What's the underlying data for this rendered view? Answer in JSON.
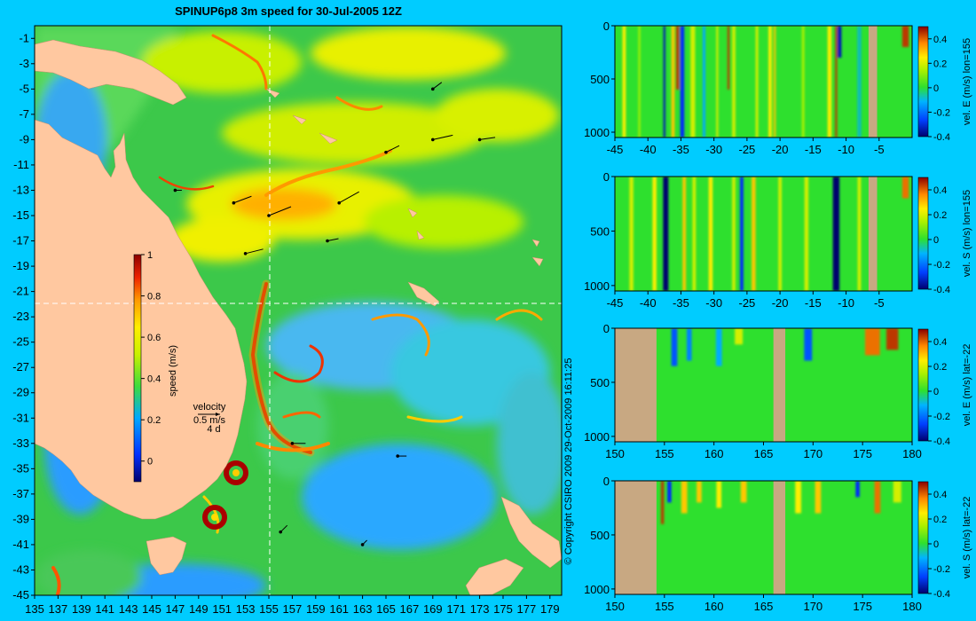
{
  "title": "SPINUP6p8 3m speed for 30-Jul-2005 12Z",
  "copyright": "© Copyright CSIRO 2009   29-Oct-2009 16:11:25",
  "velocity_key": {
    "label": "velocity",
    "speed": "0.5 m/s",
    "days": "4 d"
  },
  "colors": {
    "background": "#00ccff",
    "land": "#ffc8a0",
    "section_land": "#c8a882",
    "guide_line": "#ffffff"
  },
  "chart_data": [
    {
      "type": "heatmap",
      "title": "SPINUP6p8 3m speed for 30-Jul-2005 12Z",
      "xlabel": "",
      "ylabel": "",
      "xlim": [
        135,
        180
      ],
      "ylim": [
        -45,
        0
      ],
      "x_ticks": [
        "135",
        "137",
        "139",
        "141",
        "143",
        "145",
        "147",
        "149",
        "151",
        "153",
        "155",
        "157",
        "159",
        "161",
        "163",
        "165",
        "167",
        "169",
        "171",
        "173",
        "175",
        "177",
        "179"
      ],
      "y_ticks": [
        "-1",
        "-3",
        "-5",
        "-7",
        "-9",
        "-11",
        "-13",
        "-15",
        "-17",
        "-19",
        "-21",
        "-23",
        "-25",
        "-27",
        "-29",
        "-31",
        "-33",
        "-35",
        "-37",
        "-39",
        "-41",
        "-43",
        "-45"
      ],
      "colorbar": {
        "label": "speed (m/s)",
        "range": [
          -0.1,
          1
        ],
        "ticks": [
          "1",
          "0.8",
          "0.6",
          "0.4",
          "0.2",
          "0"
        ]
      },
      "section_guides": {
        "lon": 155,
        "lat": -22
      },
      "eddies": [
        {
          "lon": 151.8,
          "lat": -35.5
        },
        {
          "lon": 150.0,
          "lat": -38.8
        }
      ],
      "velocity_vectors": [
        {
          "lon": 152,
          "lat": -14,
          "u": 0.8,
          "v": 0.3
        },
        {
          "lon": 155,
          "lat": -15,
          "u": 1.0,
          "v": 0.4
        },
        {
          "lon": 161,
          "lat": -14,
          "u": 0.9,
          "v": 0.5
        },
        {
          "lon": 165,
          "lat": -10,
          "u": 0.6,
          "v": 0.3
        },
        {
          "lon": 169,
          "lat": -9,
          "u": 0.9,
          "v": 0.2
        },
        {
          "lon": 173,
          "lat": -9,
          "u": 0.7,
          "v": 0.1
        },
        {
          "lon": 153,
          "lat": -18,
          "u": 0.8,
          "v": 0.2
        },
        {
          "lon": 160,
          "lat": -17,
          "u": 0.5,
          "v": 0.1
        },
        {
          "lon": 147,
          "lat": -13,
          "u": 0.3,
          "v": 0.0
        },
        {
          "lon": 166,
          "lat": -34,
          "u": 0.4,
          "v": 0.0
        },
        {
          "lon": 157,
          "lat": -33,
          "u": 0.6,
          "v": 0.0
        },
        {
          "lon": 156,
          "lat": -40,
          "u": 0.3,
          "v": 0.3
        },
        {
          "lon": 163,
          "lat": -41,
          "u": 0.2,
          "v": 0.2
        },
        {
          "lon": 169,
          "lat": -5,
          "u": 0.4,
          "v": 0.3
        }
      ]
    },
    {
      "type": "heatmap",
      "xlim": [
        -45,
        0
      ],
      "ylim": [
        1050,
        0
      ],
      "x_ticks": [
        "-45",
        "-40",
        "-35",
        "-30",
        "-25",
        "-20",
        "-15",
        "-10",
        "-5"
      ],
      "y_ticks": [
        "0",
        "500",
        "1000"
      ],
      "colorbar": {
        "label": "vel. E (m/s) lon=155",
        "range": [
          -0.4,
          0.5
        ],
        "ticks": [
          "0.4",
          "0.2",
          "0",
          "-0.2",
          "-0.4"
        ]
      },
      "land_bands": [
        [
          -6.6,
          -5.3
        ]
      ],
      "features": [
        {
          "x": -43.6,
          "v": 0.25,
          "depth": 1050,
          "w": 0.5
        },
        {
          "x": -41.3,
          "v": 0.15,
          "depth": 1050,
          "w": 0.3
        },
        {
          "x": -37.5,
          "v": -0.35,
          "depth": 1050,
          "w": 0.3
        },
        {
          "x": -36.2,
          "v": 0.3,
          "depth": 1050,
          "w": 0.5
        },
        {
          "x": -35.5,
          "v": 0.45,
          "depth": 600,
          "w": 0.5
        },
        {
          "x": -34.8,
          "v": -0.3,
          "depth": 1050,
          "w": 0.6
        },
        {
          "x": -33.2,
          "v": 0.2,
          "depth": 1050,
          "w": 0.7
        },
        {
          "x": -31.5,
          "v": -0.15,
          "depth": 1050,
          "w": 0.4
        },
        {
          "x": -29.5,
          "v": 0.2,
          "depth": 1050,
          "w": 0.3
        },
        {
          "x": -27.8,
          "v": 0.45,
          "depth": 600,
          "w": 0.3
        },
        {
          "x": -27.0,
          "v": 0.2,
          "depth": 1050,
          "w": 0.5
        },
        {
          "x": -23.5,
          "v": 0.2,
          "depth": 1050,
          "w": 0.4
        },
        {
          "x": -21.5,
          "v": 0.25,
          "depth": 1050,
          "w": 0.5
        },
        {
          "x": -20.8,
          "v": 0.3,
          "depth": 1050,
          "w": 0.3
        },
        {
          "x": -16.5,
          "v": 0.15,
          "depth": 1050,
          "w": 0.4
        },
        {
          "x": -12.5,
          "v": 0.25,
          "depth": 1050,
          "w": 0.6
        },
        {
          "x": -11.5,
          "v": 0.45,
          "depth": 1050,
          "w": 0.3
        },
        {
          "x": -11.0,
          "v": -0.35,
          "depth": 300,
          "w": 0.6
        },
        {
          "x": -8.0,
          "v": -0.1,
          "depth": 1050,
          "w": 0.6
        },
        {
          "x": -1.0,
          "v": 0.45,
          "depth": 200,
          "w": 1.0
        }
      ]
    },
    {
      "type": "heatmap",
      "xlim": [
        -45,
        0
      ],
      "ylim": [
        1050,
        0
      ],
      "x_ticks": [
        "-45",
        "-40",
        "-35",
        "-30",
        "-25",
        "-20",
        "-15",
        "-10",
        "-5"
      ],
      "y_ticks": [
        "0",
        "500",
        "1000"
      ],
      "colorbar": {
        "label": "vel. S (m/s) lon=155",
        "range": [
          -0.4,
          0.5
        ],
        "ticks": [
          "0.4",
          "0.2",
          "0",
          "-0.2",
          "-0.4"
        ]
      },
      "land_bands": [
        [
          -6.6,
          -5.3
        ]
      ],
      "features": [
        {
          "x": -42.5,
          "v": 0.2,
          "depth": 1050,
          "w": 0.6
        },
        {
          "x": -39.0,
          "v": 0.25,
          "depth": 1050,
          "w": 0.6
        },
        {
          "x": -37.3,
          "v": -0.45,
          "depth": 1050,
          "w": 0.8
        },
        {
          "x": -34.5,
          "v": 0.3,
          "depth": 1050,
          "w": 0.5
        },
        {
          "x": -33.0,
          "v": 0.2,
          "depth": 1050,
          "w": 0.5
        },
        {
          "x": -30.5,
          "v": 0.25,
          "depth": 1050,
          "w": 0.6
        },
        {
          "x": -27.0,
          "v": 0.2,
          "depth": 1050,
          "w": 0.5
        },
        {
          "x": -25.8,
          "v": -0.3,
          "depth": 1050,
          "w": 0.5
        },
        {
          "x": -24.0,
          "v": 0.3,
          "depth": 1050,
          "w": 0.6
        },
        {
          "x": -20.0,
          "v": 0.2,
          "depth": 1050,
          "w": 0.5
        },
        {
          "x": -16.0,
          "v": 0.2,
          "depth": 1050,
          "w": 0.6
        },
        {
          "x": -11.5,
          "v": -0.45,
          "depth": 1050,
          "w": 1.0
        },
        {
          "x": -8.0,
          "v": 0.2,
          "depth": 1050,
          "w": 0.5
        },
        {
          "x": -1.0,
          "v": 0.4,
          "depth": 200,
          "w": 1.0
        }
      ]
    },
    {
      "type": "heatmap",
      "xlim": [
        150,
        180
      ],
      "ylim": [
        1050,
        0
      ],
      "x_ticks": [
        "150",
        "155",
        "160",
        "165",
        "170",
        "175",
        "180"
      ],
      "y_ticks": [
        "0",
        "500",
        "1000"
      ],
      "colorbar": {
        "label": "vel. E (m/s) lat=-22",
        "range": [
          -0.4,
          0.5
        ],
        "ticks": [
          "0.4",
          "0.2",
          "0",
          "-0.2",
          "-0.4"
        ]
      },
      "land_bands": [
        [
          150,
          154.2
        ],
        [
          166.0,
          167.2
        ]
      ],
      "features": [
        {
          "x": 156.0,
          "v": -0.25,
          "depth": 350,
          "w": 0.6
        },
        {
          "x": 157.5,
          "v": -0.2,
          "depth": 300,
          "w": 0.5
        },
        {
          "x": 160.5,
          "v": -0.15,
          "depth": 350,
          "w": 0.6
        },
        {
          "x": 162.5,
          "v": 0.2,
          "depth": 150,
          "w": 0.8
        },
        {
          "x": 169.5,
          "v": -0.25,
          "depth": 300,
          "w": 0.8
        },
        {
          "x": 176.0,
          "v": 0.4,
          "depth": 250,
          "w": 1.5
        },
        {
          "x": 178.0,
          "v": 0.45,
          "depth": 200,
          "w": 1.2
        }
      ]
    },
    {
      "type": "heatmap",
      "xlim": [
        150,
        180
      ],
      "ylim": [
        1050,
        0
      ],
      "x_ticks": [
        "150",
        "155",
        "160",
        "165",
        "170",
        "175",
        "180"
      ],
      "y_ticks": [
        "0",
        "500",
        "1000"
      ],
      "colorbar": {
        "label": "vel. S (m/s) lat=-22",
        "range": [
          -0.4,
          0.5
        ],
        "ticks": [
          "0.4",
          "0.2",
          "0",
          "-0.2",
          "-0.4"
        ]
      },
      "land_bands": [
        [
          150,
          154.2
        ],
        [
          166.0,
          167.2
        ]
      ],
      "features": [
        {
          "x": 154.8,
          "v": 0.45,
          "depth": 400,
          "w": 0.3
        },
        {
          "x": 155.5,
          "v": -0.3,
          "depth": 200,
          "w": 0.4
        },
        {
          "x": 157.0,
          "v": 0.3,
          "depth": 300,
          "w": 0.6
        },
        {
          "x": 158.5,
          "v": 0.3,
          "depth": 200,
          "w": 0.5
        },
        {
          "x": 160.5,
          "v": 0.25,
          "depth": 250,
          "w": 0.5
        },
        {
          "x": 163.0,
          "v": 0.3,
          "depth": 200,
          "w": 0.6
        },
        {
          "x": 168.5,
          "v": 0.25,
          "depth": 300,
          "w": 0.6
        },
        {
          "x": 170.5,
          "v": 0.3,
          "depth": 300,
          "w": 0.6
        },
        {
          "x": 174.5,
          "v": -0.3,
          "depth": 150,
          "w": 0.4
        },
        {
          "x": 176.5,
          "v": 0.4,
          "depth": 300,
          "w": 0.6
        },
        {
          "x": 178.5,
          "v": 0.2,
          "depth": 200,
          "w": 0.8
        }
      ]
    }
  ]
}
